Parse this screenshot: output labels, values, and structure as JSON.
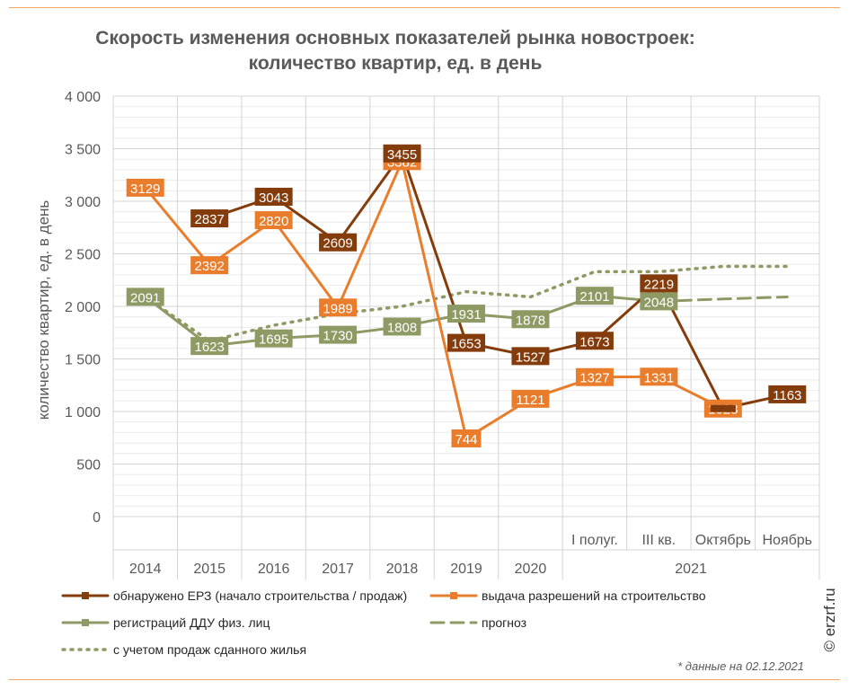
{
  "chart_data": {
    "type": "line",
    "title": "Скорость изменения основных показателей рынка новостроек:",
    "subtitle": "количество квартир, ед. в день",
    "ylabel": "количество квартир, ед. в день",
    "ylim": [
      0,
      4000
    ],
    "yticks": [
      0,
      500,
      1000,
      1500,
      2000,
      2500,
      3000,
      3500,
      4000
    ],
    "ytick_labels": [
      "0",
      "500",
      "1 000",
      "1 500",
      "2 000",
      "2 500",
      "3 000",
      "3 500",
      "4 000"
    ],
    "categories": [
      "2014",
      "2015",
      "2016",
      "2017",
      "2018",
      "2019",
      "2020",
      "I полуг.",
      "III кв.",
      "Октябрь",
      "Ноябрь"
    ],
    "group_label": "2021",
    "grid": true,
    "legend_position": "bottom",
    "series": [
      {
        "name": "обнаружено ЕРЗ (начало строительства / продаж)",
        "color": "#843c0c",
        "style": "solid-marker",
        "values": [
          null,
          2837,
          3043,
          2609,
          3455,
          1653,
          1527,
          1673,
          2219,
          1028,
          1163
        ],
        "labels": [
          null,
          "2837",
          "3043",
          "2609",
          "3455",
          "1653",
          "1527",
          "1673",
          "2219",
          null,
          "1163"
        ]
      },
      {
        "name": "выдача разрешений на строительство",
        "color": "#e97d2c",
        "style": "solid-marker",
        "values": [
          3129,
          2392,
          2820,
          1989,
          3382,
          744,
          1121,
          1327,
          1331,
          1028,
          null
        ],
        "labels": [
          "3129",
          "2392",
          "2820",
          "1989",
          "3382",
          "744",
          "1121",
          "1327",
          "1331",
          "1028",
          null
        ]
      },
      {
        "name": "регистраций ДДУ физ. лиц",
        "color": "#8e9a64",
        "style": "solid-marker",
        "values": [
          2091,
          1623,
          1695,
          1730,
          1808,
          1931,
          1878,
          2101,
          2048,
          null,
          null
        ],
        "labels": [
          "2091",
          "1623",
          "1695",
          "1730",
          "1808",
          "1931",
          "1878",
          "2101",
          "2048",
          null,
          null
        ]
      },
      {
        "name": "прогноз",
        "color": "#8e9a64",
        "style": "dashed",
        "values": [
          null,
          null,
          null,
          null,
          null,
          null,
          null,
          null,
          2048,
          2070,
          2090
        ]
      },
      {
        "name": "с учетом продаж сданного жилья",
        "color": "#8e9a64",
        "style": "dotted",
        "values": [
          2091,
          1670,
          1820,
          1930,
          2000,
          2140,
          2090,
          2330,
          2330,
          2380,
          2380
        ]
      }
    ],
    "footnote": "* данные на 02.12.2021",
    "copyright": "© erzrf.ru"
  }
}
